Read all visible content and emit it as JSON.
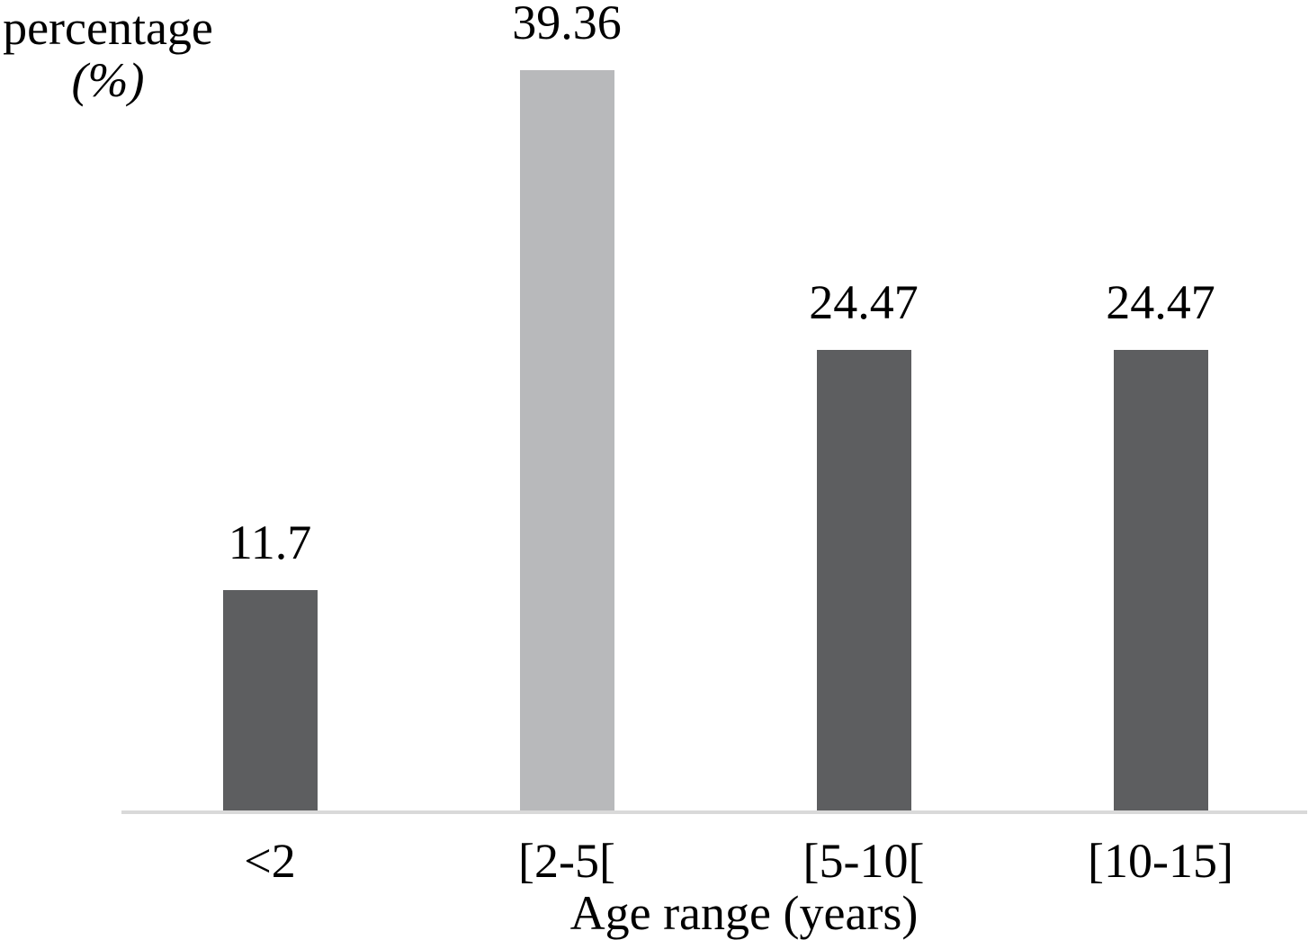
{
  "chart_data": {
    "type": "bar",
    "categories": [
      "<2",
      "[2-5[",
      "[5-10[",
      "[10-15]"
    ],
    "values": [
      11.7,
      39.36,
      24.47,
      24.47
    ],
    "value_labels": [
      "11.7",
      "39.36",
      "24.47",
      "24.47"
    ],
    "bar_colors": [
      "#5d5e60",
      "#b8b9bb",
      "#5d5e60",
      "#5d5e60"
    ],
    "title": "",
    "xlabel": "Age range (years)",
    "ylabel_line1": "percentage",
    "ylabel_line2": "(%)",
    "ylim": [
      0,
      43.1
    ],
    "grid": false,
    "legend": "none",
    "axis_line_color": "#d9d9d9",
    "text_color": "#000000",
    "background": "#ffffff"
  }
}
